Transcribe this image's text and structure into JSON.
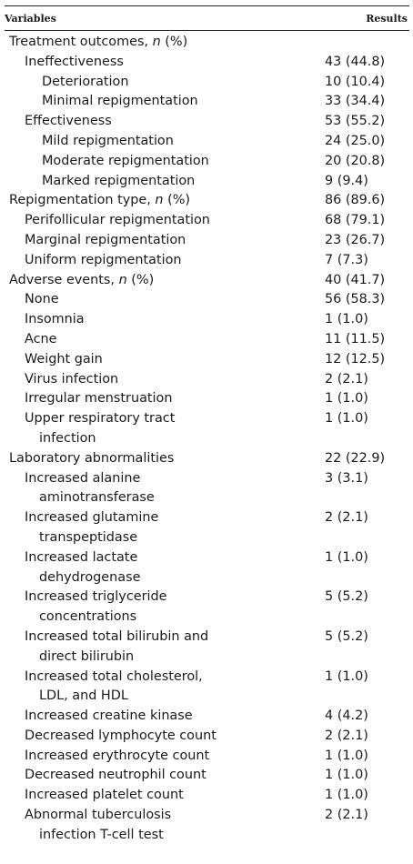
{
  "table": {
    "header": {
      "variables": "Variables",
      "results": "Results"
    },
    "rows": [
      {
        "l": 0,
        "label": "Treatment outcomes, ",
        "ital": "n",
        "suffix": " (%)",
        "value": ""
      },
      {
        "l": 1,
        "label": "Ineffectiveness",
        "value": "43 (44.8)"
      },
      {
        "l": 2,
        "label": "Deterioration",
        "value": "10 (10.4)"
      },
      {
        "l": 2,
        "label": "Minimal repigmentation",
        "value": "33 (34.4)"
      },
      {
        "l": 1,
        "label": "Effectiveness",
        "value": "53 (55.2)"
      },
      {
        "l": 2,
        "label": "Mild repigmentation",
        "value": "24 (25.0)"
      },
      {
        "l": 2,
        "label": "Moderate repigmentation",
        "value": "20 (20.8)"
      },
      {
        "l": 2,
        "label": "Marked repigmentation",
        "value": "9 (9.4)"
      },
      {
        "l": 0,
        "label": "Repigmentation type, ",
        "ital": "n",
        "suffix": " (%)",
        "value": "86 (89.6)"
      },
      {
        "l": 1,
        "label": "Perifollicular repigmentation",
        "value": "68 (79.1)"
      },
      {
        "l": 1,
        "label": "Marginal repigmentation",
        "value": "23 (26.7)"
      },
      {
        "l": 1,
        "label": "Uniform repigmentation",
        "value": "7 (7.3)"
      },
      {
        "l": 0,
        "label": "Adverse events, ",
        "ital": "n",
        "suffix": " (%)",
        "value": "40 (41.7)"
      },
      {
        "l": 1,
        "label": "None",
        "value": "56 (58.3)"
      },
      {
        "l": 1,
        "label": "Insomnia",
        "value": "1 (1.0)"
      },
      {
        "l": 1,
        "label": "Acne",
        "value": "11 (11.5)"
      },
      {
        "l": 1,
        "label": "Weight gain",
        "value": "12 (12.5)"
      },
      {
        "l": 1,
        "label": "Virus infection",
        "value": "2 (2.1)"
      },
      {
        "l": 1,
        "label": "Irregular menstruation",
        "value": "1 (1.0)"
      },
      {
        "l": 1,
        "label": "Upper respiratory tract",
        "cont": "infection",
        "value": "1 (1.0)"
      },
      {
        "l": 0,
        "label": "Laboratory abnormalities",
        "value": "22 (22.9)"
      },
      {
        "l": 1,
        "label": "Increased alanine",
        "cont": "aminotransferase",
        "value": "3 (3.1)"
      },
      {
        "l": 1,
        "label": "Increased glutamine",
        "cont": "transpeptidase",
        "value": "2 (2.1)"
      },
      {
        "l": 1,
        "label": "Increased lactate",
        "cont": "dehydrogenase",
        "value": "1 (1.0)"
      },
      {
        "l": 1,
        "label": "Increased triglyceride",
        "cont": "concentrations",
        "value": "5 (5.2)"
      },
      {
        "l": 1,
        "label": "Increased total bilirubin and",
        "cont": "direct bilirubin",
        "value": "5 (5.2)"
      },
      {
        "l": 1,
        "label": "Increased total cholesterol,",
        "cont": "LDL, and HDL",
        "value": "1 (1.0)"
      },
      {
        "l": 1,
        "label": "Increased creatine kinase",
        "value": "4 (4.2)"
      },
      {
        "l": 1,
        "label": "Decreased lymphocyte count",
        "value": "2 (2.1)"
      },
      {
        "l": 1,
        "label": "Increased erythrocyte count",
        "value": "1 (1.0)"
      },
      {
        "l": 1,
        "label": "Decreased neutrophil count",
        "value": "1 (1.0)"
      },
      {
        "l": 1,
        "label": "Increased platelet count",
        "value": "1 (1.0)"
      },
      {
        "l": 1,
        "label": "Abnormal tuberculosis",
        "cont": "infection T-cell test",
        "value": "2 (2.1)"
      }
    ]
  }
}
